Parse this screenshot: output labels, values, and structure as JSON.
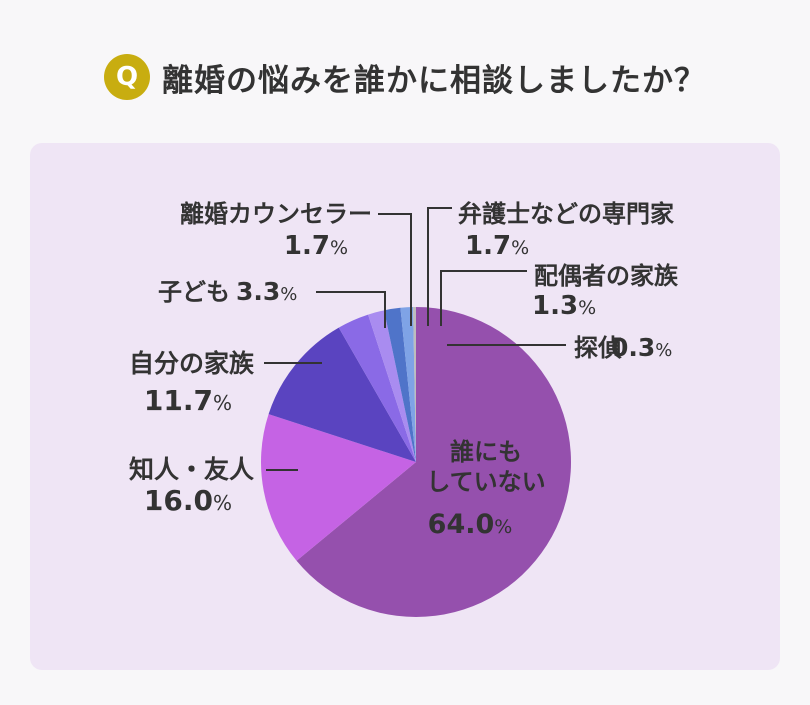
{
  "question": {
    "badge": "Q",
    "title": "離婚の悩みを誰かに相談しましたか？"
  },
  "chart_data": {
    "type": "pie",
    "title": "離婚の悩みを誰かに相談しましたか？",
    "unit": "%",
    "slices": [
      {
        "label": "誰にもしていない",
        "lines": [
          "誰にも",
          "していない"
        ],
        "value": 64.0,
        "value_text": "64.0",
        "color": "#9550ad"
      },
      {
        "label": "知人・友人",
        "lines": [
          "知人・友人"
        ],
        "value": 16.0,
        "value_text": "16.0",
        "color": "#c563e4"
      },
      {
        "label": "自分の家族",
        "lines": [
          "自分の家族"
        ],
        "value": 11.7,
        "value_text": "11.7",
        "color": "#5a44c0"
      },
      {
        "label": "子ども",
        "lines": [
          "子ども"
        ],
        "value": 3.3,
        "value_text": "3.3",
        "color": "#8a6ae6"
      },
      {
        "label": "離婚カウンセラー",
        "lines": [
          "離婚カウンセラー"
        ],
        "value": 1.7,
        "value_text": "1.7",
        "color": "#a98cf0"
      },
      {
        "label": "弁護士などの専門家",
        "lines": [
          "弁護士などの専門家"
        ],
        "value": 1.7,
        "value_text": "1.7",
        "color": "#4f74c9"
      },
      {
        "label": "配偶者の家族",
        "lines": [
          "配偶者の家族"
        ],
        "value": 1.3,
        "value_text": "1.3",
        "color": "#7fa3e6"
      },
      {
        "label": "探偵",
        "lines": [
          "探偵"
        ],
        "value": 0.3,
        "value_text": "0.3",
        "color": "#bdbdbd"
      }
    ]
  }
}
